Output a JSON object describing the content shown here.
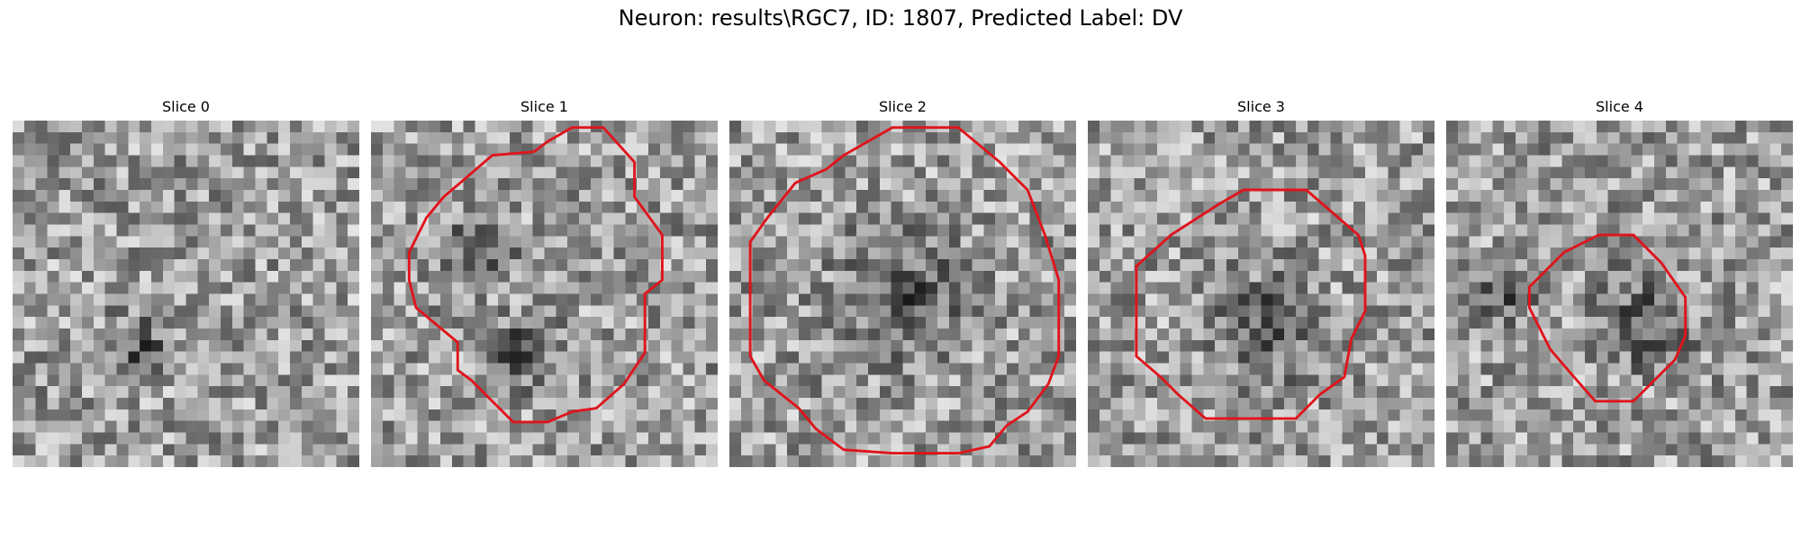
{
  "figure": {
    "title": "Neuron: results\\RGC7, ID: 1807, Predicted Label: DV",
    "contour_color": "#e0141c"
  },
  "panels": [
    {
      "title": "Slice 0",
      "grid_size": 30,
      "contour": null,
      "dark_blobs": [
        [
          0.36,
          0.66,
          0.06
        ]
      ]
    },
    {
      "title": "Slice 1",
      "grid_size": 30,
      "contour": [
        [
          5.8,
          0.2
        ],
        [
          6.7,
          0.2
        ],
        [
          7.6,
          1.2
        ],
        [
          7.6,
          2.2
        ],
        [
          8.4,
          3.3
        ],
        [
          8.4,
          4.6
        ],
        [
          7.9,
          5.0
        ],
        [
          7.9,
          6.7
        ],
        [
          7.3,
          7.6
        ],
        [
          6.5,
          8.3
        ],
        [
          5.8,
          8.4
        ],
        [
          5.1,
          8.7
        ],
        [
          4.1,
          8.7
        ],
        [
          3.7,
          8.3
        ],
        [
          2.9,
          7.5
        ],
        [
          2.5,
          7.2
        ],
        [
          2.5,
          6.4
        ],
        [
          1.3,
          5.4
        ],
        [
          1.1,
          4.6
        ],
        [
          1.1,
          3.8
        ],
        [
          1.6,
          2.8
        ],
        [
          2.1,
          2.2
        ],
        [
          3.5,
          1.0
        ],
        [
          4.7,
          0.9
        ],
        [
          5.1,
          0.6
        ]
      ],
      "dark_blobs": [
        [
          0.3,
          0.36,
          0.07
        ],
        [
          0.44,
          0.66,
          0.07
        ]
      ]
    },
    {
      "title": "Slice 2",
      "grid_size": 30,
      "contour": [
        [
          3.3,
          1.0
        ],
        [
          4.7,
          0.2
        ],
        [
          6.6,
          0.2
        ],
        [
          7.8,
          1.2
        ],
        [
          8.6,
          2.0
        ],
        [
          9.1,
          3.3
        ],
        [
          9.5,
          4.6
        ],
        [
          9.5,
          6.8
        ],
        [
          9.2,
          7.6
        ],
        [
          8.6,
          8.4
        ],
        [
          8.0,
          8.8
        ],
        [
          7.5,
          9.4
        ],
        [
          6.6,
          9.6
        ],
        [
          4.7,
          9.6
        ],
        [
          3.3,
          9.5
        ],
        [
          2.5,
          8.9
        ],
        [
          2.0,
          8.3
        ],
        [
          1.0,
          7.5
        ],
        [
          0.6,
          6.8
        ],
        [
          0.6,
          3.5
        ],
        [
          1.1,
          2.8
        ],
        [
          1.9,
          1.8
        ],
        [
          2.8,
          1.4
        ]
      ],
      "dark_blobs": [
        [
          0.5,
          0.5,
          0.12
        ]
      ]
    },
    {
      "title": "Slice 3",
      "grid_size": 30,
      "contour": [
        [
          3.8,
          2.4
        ],
        [
          4.5,
          2.0
        ],
        [
          6.3,
          2.0
        ],
        [
          7.8,
          3.3
        ],
        [
          8.0,
          3.9
        ],
        [
          8.0,
          5.5
        ],
        [
          7.6,
          6.3
        ],
        [
          7.4,
          7.4
        ],
        [
          6.7,
          7.9
        ],
        [
          6.0,
          8.6
        ],
        [
          3.4,
          8.6
        ],
        [
          2.6,
          7.9
        ],
        [
          2.1,
          7.4
        ],
        [
          1.4,
          6.8
        ],
        [
          1.4,
          4.2
        ],
        [
          2.4,
          3.3
        ]
      ],
      "dark_blobs": [
        [
          0.5,
          0.6,
          0.1
        ]
      ]
    },
    {
      "title": "Slice 4",
      "grid_size": 30,
      "contour": [
        [
          4.4,
          3.3
        ],
        [
          5.4,
          3.3
        ],
        [
          6.2,
          4.1
        ],
        [
          6.9,
          5.1
        ],
        [
          6.9,
          6.2
        ],
        [
          6.6,
          6.9
        ],
        [
          6.0,
          7.5
        ],
        [
          5.4,
          8.1
        ],
        [
          4.3,
          8.1
        ],
        [
          3.6,
          7.3
        ],
        [
          3.0,
          6.6
        ],
        [
          2.4,
          5.4
        ],
        [
          2.4,
          4.8
        ],
        [
          3.4,
          3.8
        ]
      ],
      "dark_blobs": [
        [
          0.57,
          0.58,
          0.09
        ],
        [
          0.15,
          0.5,
          0.06
        ]
      ]
    }
  ]
}
